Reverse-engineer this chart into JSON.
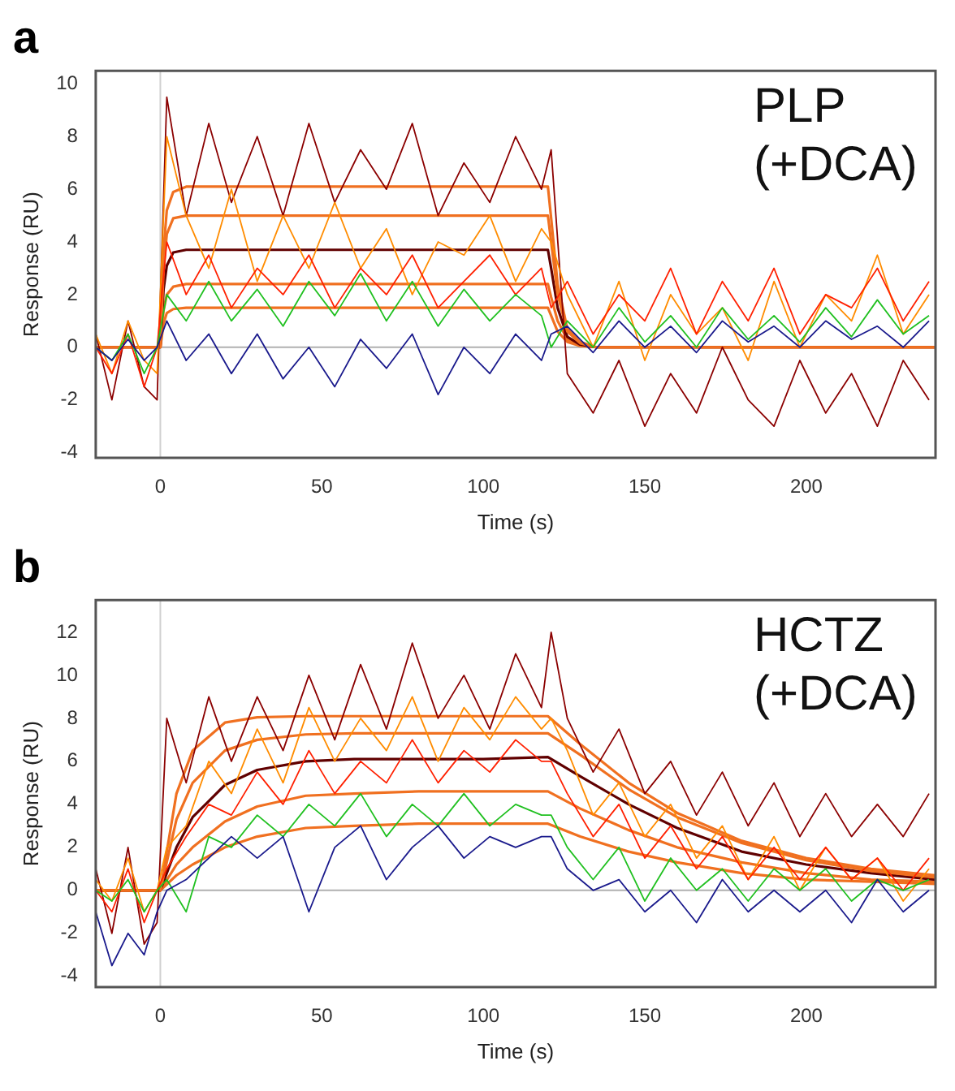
{
  "chart_data": [
    {
      "type": "line",
      "title": "a",
      "xlabel": "Time (s)",
      "ylabel": "Response (RU)",
      "annotations": [
        "PLP (+DCA)"
      ],
      "x": [
        -20,
        -15,
        -10,
        -5,
        -1,
        2,
        8,
        15,
        22,
        30,
        38,
        46,
        54,
        62,
        70,
        78,
        86,
        94,
        102,
        110,
        118,
        121,
        126,
        134,
        142,
        150,
        158,
        166,
        174,
        182,
        190,
        198,
        206,
        214,
        222,
        230,
        238
      ],
      "series": [
        {
          "color": "#1a1a8c",
          "values": [
            0,
            -0.5,
            0.3,
            -0.5,
            0,
            1,
            -0.5,
            0.5,
            -1,
            0.5,
            -1.2,
            0,
            -1.5,
            0.3,
            -0.8,
            0.5,
            -1.8,
            0,
            -1,
            0.5,
            -0.5,
            0.5,
            0.8,
            -0.2,
            1,
            0,
            0.8,
            -0.2,
            1,
            0.2,
            0.8,
            0,
            1,
            0.3,
            0.8,
            0,
            1
          ]
        },
        {
          "color": "#20c020",
          "values": [
            0,
            -0.5,
            0.5,
            -1,
            0,
            2,
            1,
            2.5,
            1,
            2.2,
            0.8,
            2.5,
            1.2,
            2.8,
            1,
            2.5,
            0.8,
            2.2,
            1,
            2,
            1.2,
            0,
            1,
            0,
            1.5,
            0.2,
            1.2,
            0,
            1.5,
            0.3,
            1.2,
            0.2,
            1.5,
            0.4,
            1.8,
            0.5,
            1.2
          ]
        },
        {
          "color": "#ff2000",
          "values": [
            0,
            -1,
            0.5,
            -1.5,
            0,
            4,
            2,
            3.5,
            1.5,
            3,
            2,
            3.5,
            1.5,
            3,
            2,
            3.5,
            1.5,
            2.5,
            3.5,
            2,
            3,
            1.5,
            2.5,
            0.5,
            2,
            1,
            3,
            0.5,
            2.5,
            1,
            3,
            0.5,
            2,
            1.5,
            3,
            1,
            2.5
          ]
        },
        {
          "color": "#ff8c00",
          "values": [
            0.5,
            -1,
            1,
            -0.5,
            -1,
            8,
            5,
            3,
            6,
            2.5,
            5,
            3,
            5.5,
            3,
            4.5,
            2,
            4,
            3.5,
            5,
            2.5,
            4.5,
            4,
            2,
            0,
            2.5,
            -0.5,
            2,
            0.5,
            1.5,
            -0.5,
            2.5,
            0,
            2,
            1,
            3.5,
            0.5,
            2
          ]
        },
        {
          "color": "#8b0000",
          "values": [
            0.5,
            -2,
            1,
            -1.5,
            -2,
            9.5,
            5,
            8.5,
            5.5,
            8,
            5,
            8.5,
            5.5,
            7.5,
            6,
            8.5,
            5,
            7,
            5.5,
            8,
            6,
            7.5,
            -1,
            -2.5,
            -0.5,
            -3,
            -1,
            -2.5,
            0,
            -2,
            -3,
            -0.5,
            -2.5,
            -1,
            -3,
            -0.5,
            -2
          ]
        },
        {
          "color": "#f07020",
          "x": [
            -20,
            0,
            1,
            2,
            4,
            8,
            120,
            121,
            123,
            126,
            130,
            135,
            240
          ],
          "values": [
            0,
            0,
            3.7,
            5.2,
            5.9,
            6.1,
            6.1,
            4.9,
            2.4,
            0.7,
            0.2,
            0,
            0
          ]
        },
        {
          "color": "#f07020",
          "x": [
            -20,
            0,
            1,
            2,
            4,
            8,
            120,
            121,
            123,
            126,
            130,
            135,
            240
          ],
          "values": [
            0,
            0,
            3,
            4.3,
            4.9,
            5,
            5,
            4,
            2,
            0.6,
            0.15,
            0,
            0
          ]
        },
        {
          "color": "#600000",
          "x": [
            -20,
            0,
            1,
            2,
            4,
            8,
            120,
            121,
            123,
            126,
            130,
            135,
            240
          ],
          "values": [
            0,
            0,
            2.2,
            3.1,
            3.6,
            3.7,
            3.7,
            3,
            1.5,
            0.4,
            0.1,
            0,
            0
          ]
        },
        {
          "color": "#f07020",
          "x": [
            -20,
            0,
            1,
            2,
            4,
            8,
            120,
            121,
            123,
            126,
            130,
            135,
            240
          ],
          "values": [
            0,
            0,
            1.4,
            2,
            2.3,
            2.4,
            2.4,
            1.9,
            1,
            0.3,
            0.07,
            0,
            0
          ]
        },
        {
          "color": "#f07020",
          "x": [
            -20,
            0,
            1,
            2,
            4,
            8,
            120,
            121,
            123,
            126,
            130,
            135,
            240
          ],
          "values": [
            0,
            0,
            0.9,
            1.3,
            1.45,
            1.5,
            1.5,
            1.2,
            0.6,
            0.2,
            0.05,
            0,
            0
          ]
        }
      ],
      "ref_lines": [
        {
          "axis": "y",
          "value": 0,
          "color": "#b0b0b0"
        },
        {
          "axis": "x",
          "value": 0,
          "color": "#d0d0d0"
        }
      ],
      "xlim": [
        -20,
        240
      ],
      "xticks": [
        0,
        50,
        100,
        150,
        200
      ],
      "ylim": [
        -4.2,
        10.5
      ],
      "yticks": [
        -4,
        -2,
        0,
        2,
        4,
        6,
        8,
        10
      ],
      "grid": false,
      "legend": false,
      "marker": "none",
      "line_style": "solid"
    },
    {
      "type": "line",
      "title": "b",
      "xlabel": "Time (s)",
      "ylabel": "Response (RU)",
      "annotations": [
        "HCTZ (+DCA)"
      ],
      "x": [
        -20,
        -15,
        -10,
        -5,
        -1,
        2,
        8,
        15,
        22,
        30,
        38,
        46,
        54,
        62,
        70,
        78,
        86,
        94,
        102,
        110,
        118,
        121,
        126,
        134,
        142,
        150,
        158,
        166,
        174,
        182,
        190,
        198,
        206,
        214,
        222,
        230,
        238
      ],
      "series": [
        {
          "color": "#1a1a8c",
          "values": [
            -1,
            -3.5,
            -2,
            -3,
            -1,
            0,
            0.5,
            1.5,
            2.5,
            1.5,
            2.5,
            -1,
            2,
            3,
            0.5,
            2,
            3,
            1.5,
            2.5,
            2,
            2.5,
            2.5,
            1,
            0,
            0.5,
            -1,
            0,
            -1.5,
            0.5,
            -1,
            0,
            -1,
            0,
            -1.5,
            0.5,
            -1,
            0
          ]
        },
        {
          "color": "#20c020",
          "values": [
            0,
            -0.5,
            0.5,
            -1,
            0,
            0.5,
            -1,
            2.5,
            2,
            3.5,
            2.5,
            4,
            3,
            4.5,
            2.5,
            4,
            3,
            4.5,
            3,
            4,
            3.5,
            3.5,
            2,
            0.5,
            2,
            -0.5,
            1.5,
            0,
            1,
            -0.5,
            1,
            0,
            1,
            -0.5,
            0.5,
            0,
            0.5
          ]
        },
        {
          "color": "#ff2000",
          "values": [
            0,
            -1,
            1,
            -1.5,
            0,
            1,
            2.5,
            4,
            3.5,
            5.5,
            4,
            6.5,
            4.5,
            6,
            5,
            7,
            5,
            6.5,
            5.5,
            7,
            6,
            6,
            4.5,
            2.5,
            4,
            1.5,
            3,
            1,
            2.5,
            0.5,
            2,
            0.5,
            2,
            0.5,
            1.5,
            0,
            1.5
          ]
        },
        {
          "color": "#ff8c00",
          "values": [
            0.5,
            -0.5,
            1.5,
            -1,
            0,
            2,
            3,
            6,
            4.5,
            7.5,
            5,
            8.5,
            6,
            8,
            6.5,
            9,
            6,
            8.5,
            7,
            9,
            7.5,
            8,
            6.5,
            3.5,
            5,
            2.5,
            4,
            1.5,
            3,
            0.5,
            2.5,
            0,
            2,
            0.5,
            1.5,
            -0.5,
            1
          ]
        },
        {
          "color": "#8b0000",
          "values": [
            1,
            -2,
            2,
            -2.5,
            -1.5,
            8,
            5,
            9,
            6,
            9,
            6.5,
            10,
            7,
            10.5,
            7.5,
            11.5,
            8,
            10,
            7.5,
            11,
            8.5,
            12,
            8,
            5.5,
            7.5,
            4.5,
            6,
            3.5,
            5.5,
            3,
            5,
            2.5,
            4.5,
            2.5,
            4,
            2.5,
            4.5
          ]
        },
        {
          "color": "#f07020",
          "x": [
            -20,
            0,
            5,
            10,
            20,
            30,
            45,
            60,
            80,
            100,
            120,
            130,
            145,
            160,
            180,
            200,
            220,
            240
          ],
          "values": [
            0,
            0,
            4.5,
            6.5,
            7.8,
            8.05,
            8.1,
            8.1,
            8.1,
            8.1,
            8.1,
            6.8,
            5,
            3.6,
            2.3,
            1.5,
            1,
            0.7
          ]
        },
        {
          "color": "#f07020",
          "x": [
            -20,
            0,
            5,
            10,
            20,
            30,
            45,
            60,
            80,
            100,
            120,
            130,
            145,
            160,
            180,
            200,
            220,
            240
          ],
          "values": [
            0,
            0,
            3.3,
            5,
            6.5,
            7,
            7.25,
            7.3,
            7.3,
            7.3,
            7.3,
            6.3,
            4.7,
            3.4,
            2.2,
            1.4,
            0.9,
            0.6
          ]
        },
        {
          "color": "#600000",
          "x": [
            -20,
            0,
            5,
            10,
            20,
            30,
            45,
            60,
            80,
            100,
            120,
            130,
            145,
            160,
            180,
            200,
            220,
            240
          ],
          "values": [
            0,
            0,
            2,
            3.4,
            4.9,
            5.6,
            6,
            6.1,
            6.1,
            6.1,
            6.2,
            5.3,
            4,
            2.9,
            1.8,
            1.2,
            0.8,
            0.5
          ]
        },
        {
          "color": "#f07020",
          "x": [
            -20,
            0,
            5,
            10,
            20,
            30,
            45,
            60,
            80,
            100,
            120,
            130,
            145,
            160,
            180,
            200,
            220,
            240
          ],
          "values": [
            0,
            0,
            1.2,
            2,
            3.2,
            3.9,
            4.4,
            4.5,
            4.6,
            4.6,
            4.6,
            3.8,
            2.8,
            2,
            1.3,
            0.8,
            0.5,
            0.4
          ]
        },
        {
          "color": "#f07020",
          "x": [
            -20,
            0,
            5,
            10,
            20,
            30,
            45,
            60,
            80,
            100,
            120,
            130,
            145,
            160,
            180,
            200,
            220,
            240
          ],
          "values": [
            0,
            0,
            0.7,
            1.2,
            2,
            2.5,
            2.9,
            3,
            3.1,
            3.1,
            3.1,
            2.5,
            1.8,
            1.3,
            0.8,
            0.5,
            0.4,
            0.3
          ]
        }
      ],
      "ref_lines": [
        {
          "axis": "y",
          "value": 0,
          "color": "#b0b0b0"
        },
        {
          "axis": "x",
          "value": 0,
          "color": "#d0d0d0"
        }
      ],
      "xlim": [
        -20,
        240
      ],
      "xticks": [
        0,
        50,
        100,
        150,
        200
      ],
      "ylim": [
        -4.5,
        13.5
      ],
      "yticks": [
        -4,
        -2,
        0,
        2,
        4,
        6,
        8,
        10,
        12
      ],
      "grid": false,
      "legend": false,
      "marker": "none",
      "line_style": "solid"
    }
  ]
}
